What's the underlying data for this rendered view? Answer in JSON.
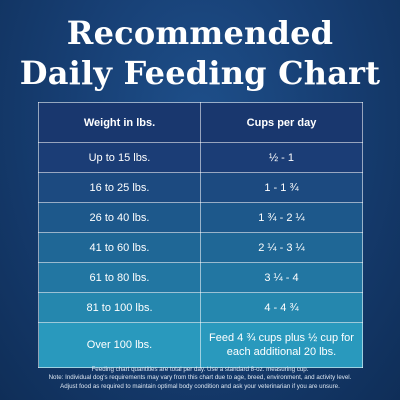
{
  "title": {
    "line1": "Recommended",
    "line2": "Daily Feeding Chart"
  },
  "table": {
    "headers": [
      "Weight in lbs.",
      "Cups per day"
    ],
    "rows": [
      {
        "weight": "Up to 15 lbs.",
        "cups": "½ - 1",
        "color": "#1b3d76"
      },
      {
        "weight": "16 to 25 lbs.",
        "cups": "1 - 1 ¾",
        "color": "#1c4a80"
      },
      {
        "weight": "26 to 40 lbs.",
        "cups": "1 ¾ - 2 ¼",
        "color": "#1d588b"
      },
      {
        "weight": "41 to 60 lbs.",
        "cups": "2 ¼ - 3 ¼",
        "color": "#1f6796"
      },
      {
        "weight": "61 to 80 lbs.",
        "cups": "3 ¼ - 4",
        "color": "#2276a2"
      },
      {
        "weight": "81 to 100 lbs.",
        "cups": "4 - 4 ¾",
        "color": "#2587ae"
      },
      {
        "weight": "Over 100 lbs.",
        "cups": "Feed 4 ¾ cups plus ½ cup for each additional 20 lbs.",
        "color": "#2999bd"
      }
    ]
  },
  "footnote": {
    "line1": "Feeding chart quantities are total per day. Use a standard 8-oz. measuring cup.",
    "line2": "Note: Individual dog's requirements may vary from this chart due to age, breed, environment, and activity level.",
    "line3": "Adjust food as required to maintain optimal body condition and ask your veterinarian if you are unsure."
  },
  "colors": {
    "background": "#173f74",
    "header_row": "#19376e",
    "text": "#ffffff"
  }
}
